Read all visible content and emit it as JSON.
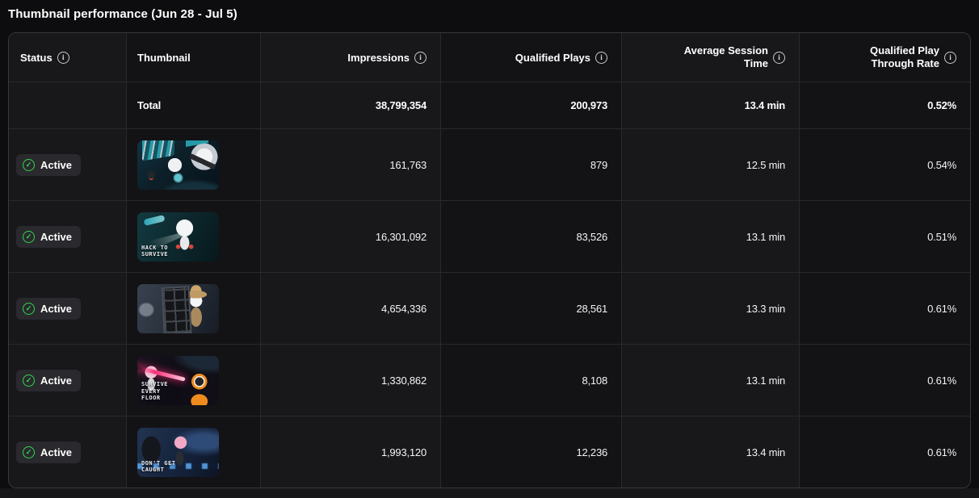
{
  "page": {
    "title": "Thumbnail performance (Jun 28 - Jul 5)"
  },
  "icons": {
    "info_glyph": "i",
    "check_glyph": "✓"
  },
  "colors": {
    "active_green": "#32d74b",
    "cell_dark": "#131316",
    "cell_light": "#18181b",
    "grid_line": "#29292d",
    "laser_pink": "#ff2f7a"
  },
  "table": {
    "columns": [
      {
        "label": "Status",
        "has_info": true,
        "align": "left"
      },
      {
        "label": "Thumbnail",
        "has_info": false,
        "align": "left"
      },
      {
        "label": "Impressions",
        "has_info": true,
        "align": "right"
      },
      {
        "label": "Qualified Plays",
        "has_info": true,
        "align": "right"
      },
      {
        "label": "Average Session Time",
        "has_info": true,
        "align": "right"
      },
      {
        "label": "Qualified Play Through Rate",
        "has_info": true,
        "align": "right"
      }
    ],
    "total": {
      "label": "Total",
      "impressions": "38,799,354",
      "qualified_plays": "200,973",
      "avg_session_time": "13.4 min",
      "qptr": "0.52%"
    },
    "rows": [
      {
        "status": "Active",
        "thumbnail_desc": "robots-in-teal-cave",
        "thumbnail_label": "",
        "impressions": "161,763",
        "qualified_plays": "879",
        "avg_session_time": "12.5 min",
        "qptr": "0.54%"
      },
      {
        "status": "Active",
        "thumbnail_desc": "hack-to-survive-robot-flashlight",
        "thumbnail_label": "HACK TO SURVIVE",
        "impressions": "16,301,092",
        "qualified_plays": "83,526",
        "avg_session_time": "13.1 min",
        "qptr": "0.51%"
      },
      {
        "status": "Active",
        "thumbnail_desc": "detective-character-with-cage",
        "thumbnail_label": "",
        "impressions": "4,654,336",
        "qualified_plays": "28,561",
        "avg_session_time": "13.3 min",
        "qptr": "0.61%"
      },
      {
        "status": "Active",
        "thumbnail_desc": "survive-every-floor-laser-robots",
        "thumbnail_label": "SURVIVE EVERY FLOOR",
        "impressions": "1,330,862",
        "qualified_plays": "8,108",
        "avg_session_time": "13.1 min",
        "qptr": "0.61%"
      },
      {
        "status": "Active",
        "thumbnail_desc": "dont-get-caught-neon-chase",
        "thumbnail_label": "DON'T GET CAUGHT",
        "impressions": "1,993,120",
        "qualified_plays": "12,236",
        "avg_session_time": "13.4 min",
        "qptr": "0.61%"
      }
    ]
  }
}
